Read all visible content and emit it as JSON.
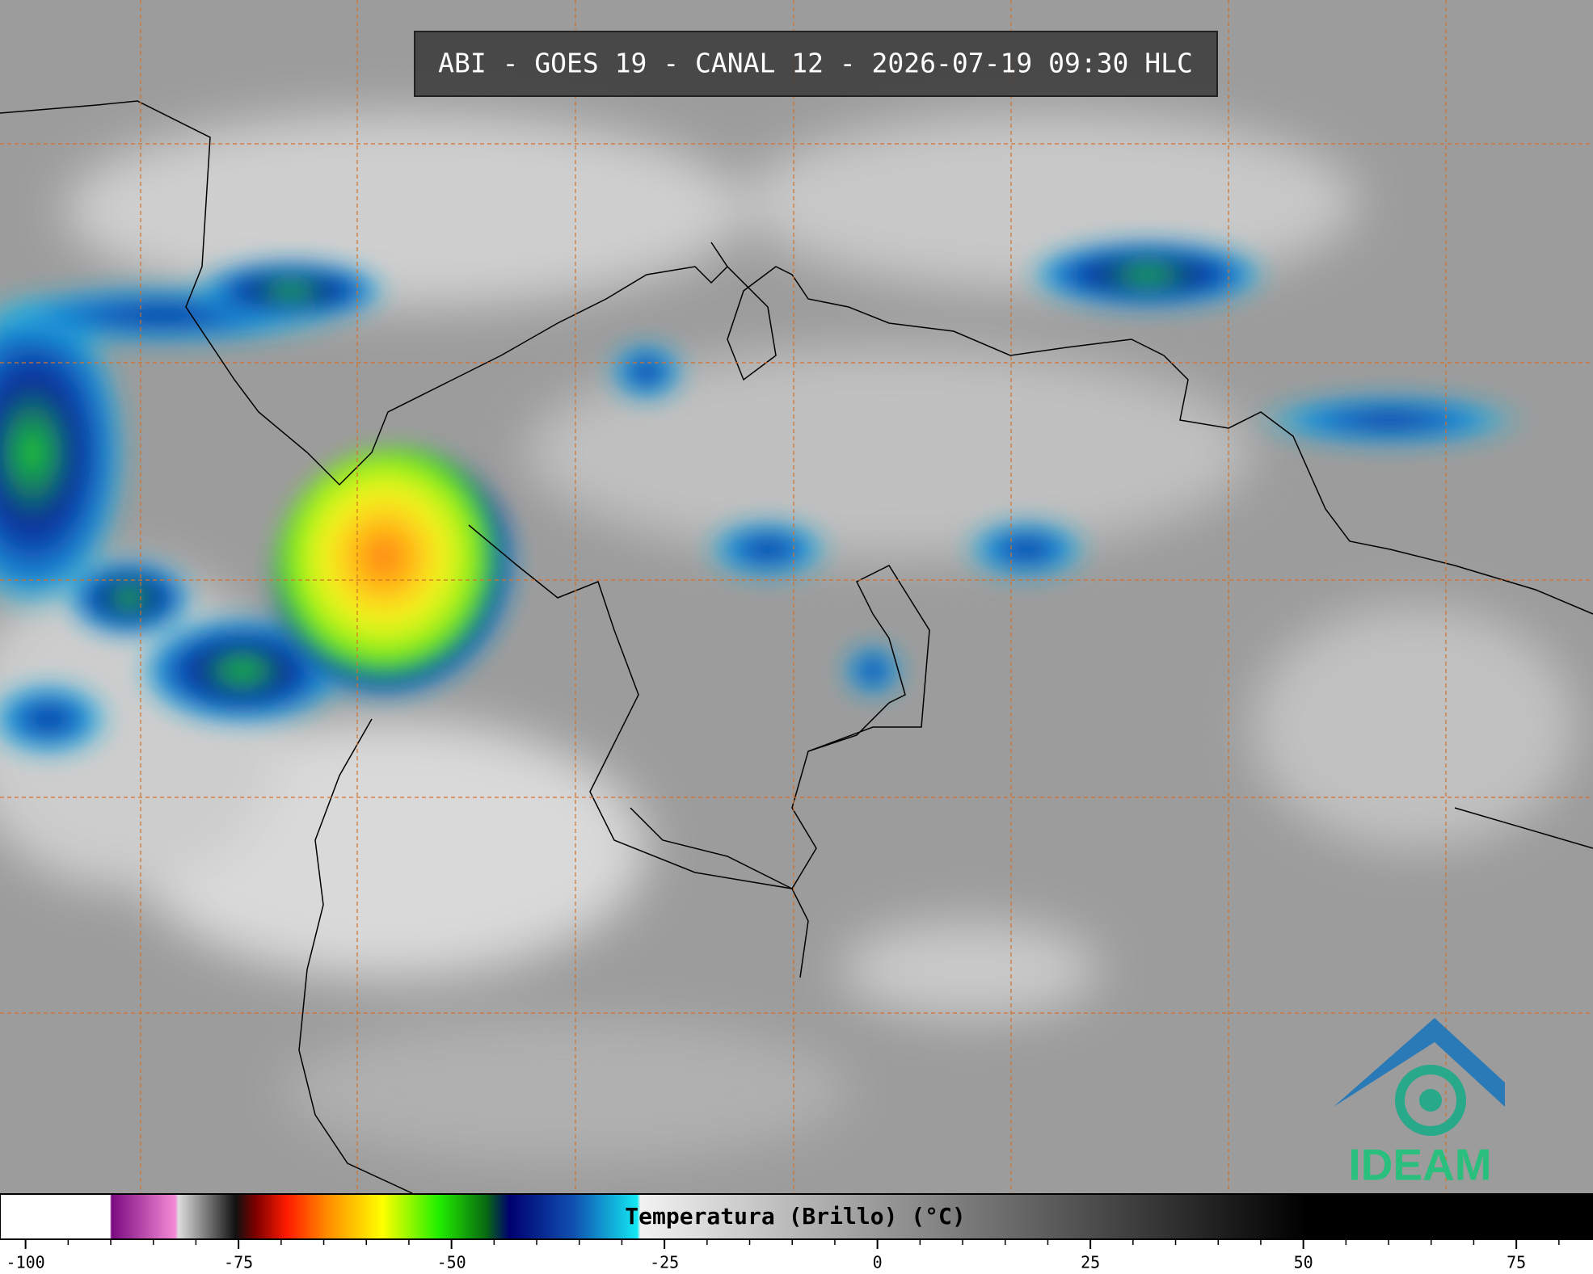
{
  "title": "ABI - GOES 19 - CANAL 12 - 2026-07-19 09:30 HLC",
  "logo": "IDEAM",
  "colorbar": {
    "label": "Temperatura (Brillo) (°C)",
    "xlim": [
      -103,
      84
    ],
    "ticks": [
      -100,
      -75,
      -50,
      -25,
      0,
      25,
      50,
      75
    ],
    "minor_ticks": [
      -95,
      -90,
      -85,
      -80,
      -70,
      -65,
      -60,
      -55,
      -45,
      -40,
      -35,
      -30,
      -20,
      -15,
      -10,
      -5,
      5,
      10,
      15,
      20,
      30,
      35,
      40,
      45,
      55,
      60,
      65,
      70,
      80
    ]
  }
}
